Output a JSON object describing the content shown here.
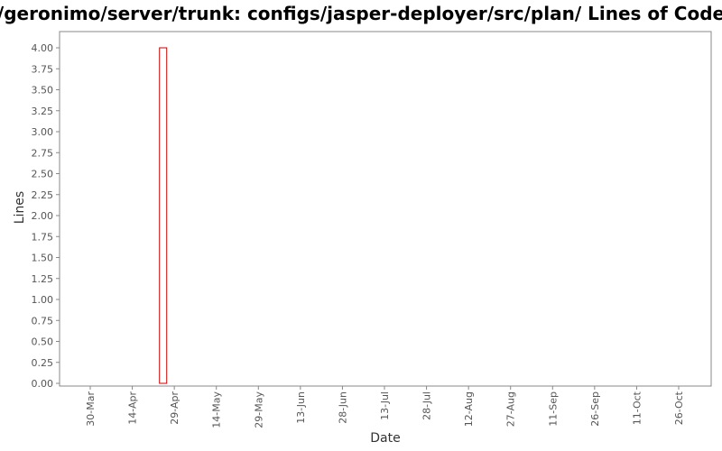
{
  "chart_data": {
    "type": "bar",
    "title": "/geronimo/server/trunk: configs/jasper-deployer/src/plan/ Lines of Code",
    "xlabel": "Date",
    "ylabel": "Lines",
    "ylim": [
      0,
      4.2
    ],
    "yticks": [
      "0.00",
      "0.25",
      "0.50",
      "0.75",
      "1.00",
      "1.25",
      "1.50",
      "1.75",
      "2.00",
      "2.25",
      "2.50",
      "2.75",
      "3.00",
      "3.25",
      "3.50",
      "3.75",
      "4.00"
    ],
    "xticks": [
      "30-Mar",
      "14-Apr",
      "29-Apr",
      "14-May",
      "29-May",
      "13-Jun",
      "28-Jun",
      "13-Jul",
      "28-Jul",
      "12-Aug",
      "27-Aug",
      "11-Sep",
      "26-Sep",
      "11-Oct",
      "26-Oct"
    ],
    "bars": [
      {
        "x": "25-Apr",
        "value": 4.0
      }
    ],
    "bar_color": "#cc0000",
    "grid": false,
    "legend": "none"
  }
}
